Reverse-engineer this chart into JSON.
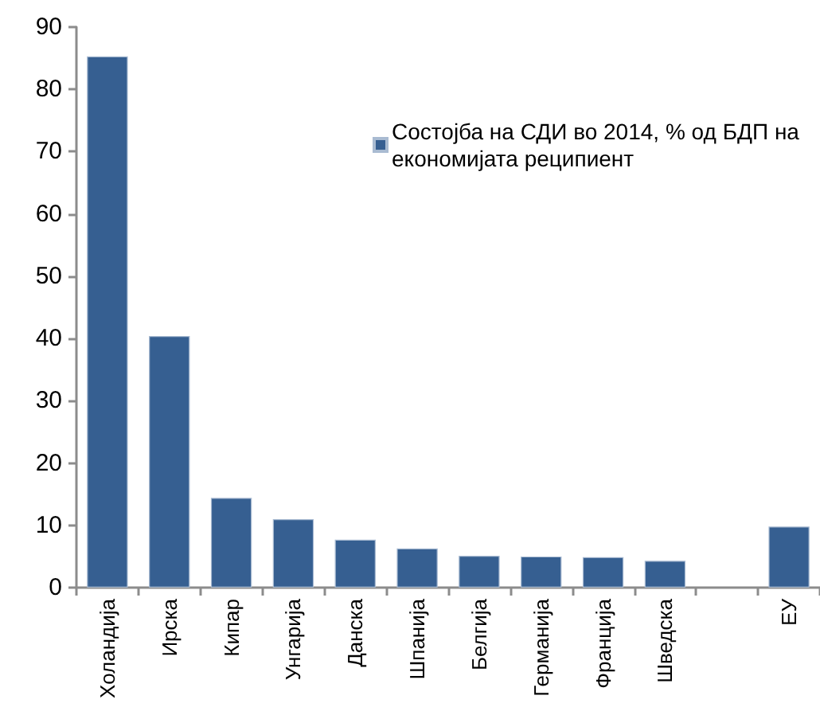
{
  "chart_data": {
    "type": "bar",
    "categories": [
      "Холандија",
      "Ирска",
      "Кипар",
      "Унгарија",
      "Данска",
      "Шпанија",
      "Белгија",
      "Германија",
      "Франција",
      "Шведска",
      null,
      "ЕУ"
    ],
    "series": [
      {
        "name": "Состојба на СДИ во 2014, % од БДП на економијата реципиент",
        "color": "#365f91",
        "values": [
          85.3,
          40.4,
          14.4,
          11.0,
          7.7,
          6.3,
          5.1,
          5.0,
          4.9,
          4.3,
          null,
          9.8
        ]
      }
    ],
    "ylim": [
      0,
      90
    ],
    "yticks": [
      0,
      10,
      20,
      30,
      40,
      50,
      60,
      70,
      80,
      90
    ],
    "grid": false,
    "legend": "top right"
  }
}
